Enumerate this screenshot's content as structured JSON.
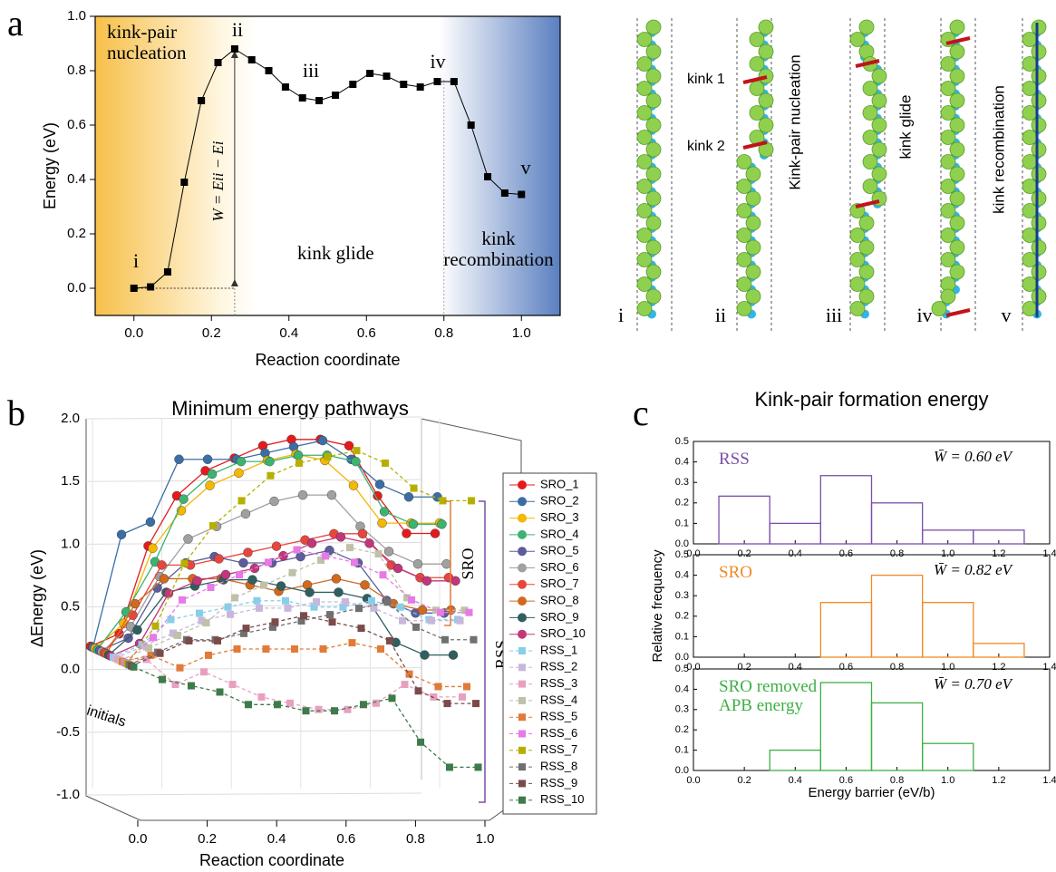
{
  "panel_labels": [
    "a",
    "b",
    "c"
  ],
  "structure": {
    "states": [
      "i",
      "ii",
      "iii",
      "iv",
      "v"
    ],
    "labels": [
      "kink 1",
      "kink 2",
      "Kink-pair nucleation",
      "kink glide",
      "kink recombination"
    ]
  },
  "chart_data": [
    {
      "type": "line",
      "xlabel": "Reaction coordinate",
      "ylabel": "Energy (eV)",
      "color": "#000000",
      "x": [
        0,
        0.043,
        0.087,
        0.13,
        0.174,
        0.217,
        0.26,
        0.304,
        0.348,
        0.391,
        0.435,
        0.478,
        0.52,
        0.565,
        0.609,
        0.652,
        0.696,
        0.739,
        0.783,
        0.826,
        0.87,
        0.913,
        0.957,
        1.0
      ],
      "values": [
        0,
        0.005,
        0.06,
        0.39,
        0.69,
        0.83,
        0.88,
        0.84,
        0.8,
        0.74,
        0.7,
        0.69,
        0.71,
        0.75,
        0.79,
        0.78,
        0.75,
        0.74,
        0.76,
        0.76,
        0.6,
        0.41,
        0.35,
        0.345
      ],
      "states": [
        "i",
        "ii",
        "iii",
        "iv",
        "v"
      ],
      "annotations": [
        "kink-pair nucleation",
        "kink glide",
        "kink recombination",
        "W = Eii − Ei"
      ],
      "xlim": [
        -0.1,
        1.1
      ],
      "ylim": [
        -0.1,
        1.0
      ],
      "xticks": [
        {
          "value": 0,
          "label": "0.0"
        },
        0.2,
        0.4,
        0.6,
        0.8,
        {
          "value": 1,
          "label": "1.0"
        }
      ],
      "yticks": [
        {
          "value": 0,
          "label": "0.0"
        },
        0.2,
        0.4,
        0.6,
        0.8,
        {
          "value": 1,
          "label": "1.0"
        }
      ]
    },
    {
      "type": "line3d",
      "title": "Minimum energy pathways",
      "xlabel": "Reaction coordinate",
      "ylabel": "ΔEnergy (eV)",
      "annotations": [
        "initials",
        "SRO",
        "RSS"
      ],
      "x": [
        0,
        0.083,
        0.167,
        0.25,
        0.333,
        0.417,
        0.5,
        0.583,
        0.667,
        0.75,
        0.833,
        0.917,
        1.0
      ],
      "xlim": [
        0,
        1
      ],
      "ylim": [
        -1,
        2
      ],
      "xticks": [
        {
          "value": 0,
          "label": "0.0"
        },
        0.2,
        0.4,
        0.6,
        0.8,
        {
          "value": 1,
          "label": "1.0"
        }
      ],
      "yticks": [
        {
          "value": -1,
          "label": "-1.0"
        },
        -0.5,
        {
          "value": 0,
          "label": "0.0"
        },
        0.5,
        {
          "value": 1,
          "label": "1.0"
        },
        1.5,
        {
          "value": 2,
          "label": "2.0"
        }
      ],
      "series": [
        {
          "name": "SRO_1",
          "color": "#e41a1c",
          "marker": "circle",
          "values": [
            0,
            0.1,
            0.8,
            1.2,
            1.4,
            1.5,
            1.6,
            1.65,
            1.65,
            1.6,
            1.2,
            0.9,
            0.9
          ]
        },
        {
          "name": "SRO_2",
          "color": "#3a6ea5",
          "marker": "circle",
          "values": [
            0,
            0.9,
            1.0,
            1.5,
            1.5,
            1.5,
            1.55,
            1.6,
            1.65,
            1.5,
            1.3,
            1.2,
            1.2
          ]
        },
        {
          "name": "SRO_3",
          "color": "#f5b700",
          "marker": "circle",
          "values": [
            0,
            0.2,
            0.8,
            1.1,
            1.3,
            1.4,
            1.5,
            1.55,
            1.5,
            1.3,
            1.0,
            1.0,
            1.0
          ]
        },
        {
          "name": "SRO_4",
          "color": "#3cb371",
          "marker": "circle",
          "values": [
            0,
            0.3,
            0.7,
            1.2,
            1.4,
            1.5,
            1.5,
            1.55,
            1.55,
            1.5,
            1.1,
            1.0,
            1.0
          ]
        },
        {
          "name": "SRO_5",
          "color": "#5c5c9e",
          "marker": "circle",
          "values": [
            0,
            0.1,
            0.5,
            0.7,
            0.75,
            0.7,
            0.7,
            0.75,
            0.8,
            0.7,
            0.4,
            0.3,
            0.3
          ]
        },
        {
          "name": "SRO_6",
          "color": "#a0a0a0",
          "marker": "circle",
          "values": [
            0,
            0.2,
            0.6,
            0.9,
            1.0,
            1.1,
            1.2,
            1.25,
            1.25,
            1.0,
            0.8,
            0.7,
            0.7
          ]
        },
        {
          "name": "SRO_7",
          "color": "#e8463c",
          "marker": "circle",
          "values": [
            0,
            0.3,
            0.7,
            0.7,
            0.75,
            0.8,
            0.85,
            0.9,
            0.95,
            0.95,
            0.7,
            0.6,
            0.6
          ]
        },
        {
          "name": "SRO_8",
          "color": "#d2691e",
          "marker": "circle",
          "values": [
            0,
            0.4,
            0.6,
            0.6,
            0.6,
            0.55,
            0.5,
            0.55,
            0.6,
            0.55,
            0.4,
            0.35,
            0.35
          ]
        },
        {
          "name": "SRO_9",
          "color": "#2f5f5f",
          "marker": "circle",
          "values": [
            0,
            0.2,
            0.5,
            0.55,
            0.6,
            0.6,
            0.55,
            0.5,
            0.5,
            0.45,
            0.1,
            0.0,
            0.0
          ]
        },
        {
          "name": "SRO_10",
          "color": "#c2367a",
          "marker": "circle",
          "values": [
            0,
            0.1,
            0.5,
            0.6,
            0.65,
            0.7,
            0.8,
            0.9,
            0.95,
            0.9,
            0.7,
            0.6,
            0.6
          ]
        },
        {
          "name": "RSS_1",
          "color": "#87ceeb",
          "marker": "square",
          "values": [
            0,
            0.1,
            0.3,
            0.35,
            0.4,
            0.45,
            0.45,
            0.4,
            0.4,
            0.45,
            0.4,
            0.3,
            0.3
          ]
        },
        {
          "name": "RSS_2",
          "color": "#c8b7dc",
          "marker": "square",
          "values": [
            0,
            0.1,
            0.2,
            0.3,
            0.35,
            0.4,
            0.4,
            0.45,
            0.45,
            0.4,
            0.3,
            0.3,
            0.3
          ]
        },
        {
          "name": "RSS_3",
          "color": "#e8a0c0",
          "marker": "square",
          "values": [
            0,
            0,
            -0.2,
            -0.1,
            -0.2,
            -0.3,
            -0.35,
            -0.4,
            -0.4,
            -0.35,
            -0.2,
            -0.3,
            -0.3
          ]
        },
        {
          "name": "RSS_4",
          "color": "#c0c0a8",
          "marker": "square",
          "values": [
            0,
            0.1,
            0.2,
            0.3,
            0.5,
            0.6,
            0.7,
            0.8,
            0.9,
            0.85,
            0.5,
            0.4,
            0.4
          ]
        },
        {
          "name": "RSS_5",
          "color": "#e07b39",
          "marker": "square",
          "values": [
            0,
            0.05,
            -0.05,
            0.05,
            0.1,
            0.1,
            0.1,
            0.1,
            0.15,
            0.1,
            -0.1,
            -0.2,
            -0.2
          ]
        },
        {
          "name": "RSS_6",
          "color": "#e67ae6",
          "marker": "square",
          "values": [
            0,
            0.2,
            0.5,
            0.6,
            0.7,
            0.8,
            0.9,
            0.85,
            0.8,
            0.7,
            0.5,
            0.4,
            0.4
          ]
        },
        {
          "name": "RSS_7",
          "color": "#b5b000",
          "marker": "square",
          "values": [
            0,
            0.3,
            0.8,
            1.1,
            1.3,
            1.5,
            1.6,
            1.65,
            1.7,
            1.6,
            1.4,
            1.3,
            1.3
          ]
        },
        {
          "name": "RSS_8",
          "color": "#707070",
          "marker": "square",
          "values": [
            0,
            0.1,
            0.2,
            0.2,
            0.25,
            0.3,
            0.35,
            0.4,
            0.45,
            0.5,
            0.3,
            0.2,
            0.2
          ]
        },
        {
          "name": "RSS_9",
          "color": "#7b4a4a",
          "marker": "square",
          "values": [
            0,
            0.1,
            0.2,
            0.2,
            0.3,
            0.35,
            0.4,
            0.35,
            0.3,
            0.2,
            -0.2,
            -0.3,
            -0.3
          ]
        },
        {
          "name": "RSS_10",
          "color": "#3e7a4a",
          "marker": "square",
          "values": [
            0,
            -0.1,
            -0.15,
            -0.2,
            -0.3,
            -0.3,
            -0.35,
            -0.35,
            -0.3,
            -0.25,
            -0.6,
            -0.8,
            -0.8
          ]
        }
      ]
    },
    {
      "type": "histogram",
      "title": "Kink-pair formation energy",
      "label": "RSS",
      "annotation": "W̄ = 0.60 eV",
      "color": "#7b4fa8",
      "bins": [
        0.1,
        0.3,
        0.5,
        0.7,
        0.9,
        1.1,
        1.3
      ],
      "values": [
        0.233,
        0.1,
        0.333,
        0.2,
        0.067,
        0.067
      ],
      "xlim": [
        0,
        1.4
      ],
      "ylim": [
        0,
        0.5
      ],
      "xticks": [
        {
          "value": 0,
          "label": "0.0"
        },
        0.2,
        0.4,
        0.6,
        0.8,
        {
          "value": 1,
          "label": "1.0"
        },
        1.2,
        1.4
      ],
      "yticks": [
        {
          "value": 0,
          "label": "0.0"
        },
        0.1,
        0.2,
        0.3,
        0.4,
        0.5
      ]
    },
    {
      "type": "histogram",
      "ylabel": "Relative frequency",
      "label": "SRO",
      "annotation": "W̄ = 0.82 eV",
      "color": "#f08a24",
      "bins": [
        0.5,
        0.7,
        0.9,
        1.1,
        1.3
      ],
      "values": [
        0.267,
        0.4,
        0.267,
        0.067
      ],
      "xlim": [
        0,
        1.4
      ],
      "ylim": [
        0,
        0.5
      ],
      "xticks": [
        {
          "value": 0,
          "label": "0.0"
        },
        0.2,
        0.4,
        0.6,
        0.8,
        {
          "value": 1,
          "label": "1.0"
        },
        1.2,
        1.4
      ],
      "yticks": [
        {
          "value": 0,
          "label": "0.0"
        },
        0.1,
        0.2,
        0.3,
        0.4,
        0.5
      ]
    },
    {
      "type": "histogram",
      "xlabel": "Energy barrier (eV/b)",
      "label": "SRO removed APB energy",
      "annotation": "W̄ = 0.70 eV",
      "color": "#3cb043",
      "bins": [
        0.3,
        0.5,
        0.7,
        0.9,
        1.1
      ],
      "values": [
        0.1,
        0.433,
        0.333,
        0.133
      ],
      "xlim": [
        0,
        1.4
      ],
      "ylim": [
        0,
        0.5
      ],
      "xticks": [
        {
          "value": 0,
          "label": "0.0"
        },
        0.2,
        0.4,
        0.6,
        0.8,
        {
          "value": 1,
          "label": "1.0"
        },
        1.2,
        1.4
      ],
      "yticks": [
        {
          "value": 0,
          "label": "0.0"
        },
        0.1,
        0.2,
        0.3,
        0.4,
        0.5
      ]
    }
  ]
}
